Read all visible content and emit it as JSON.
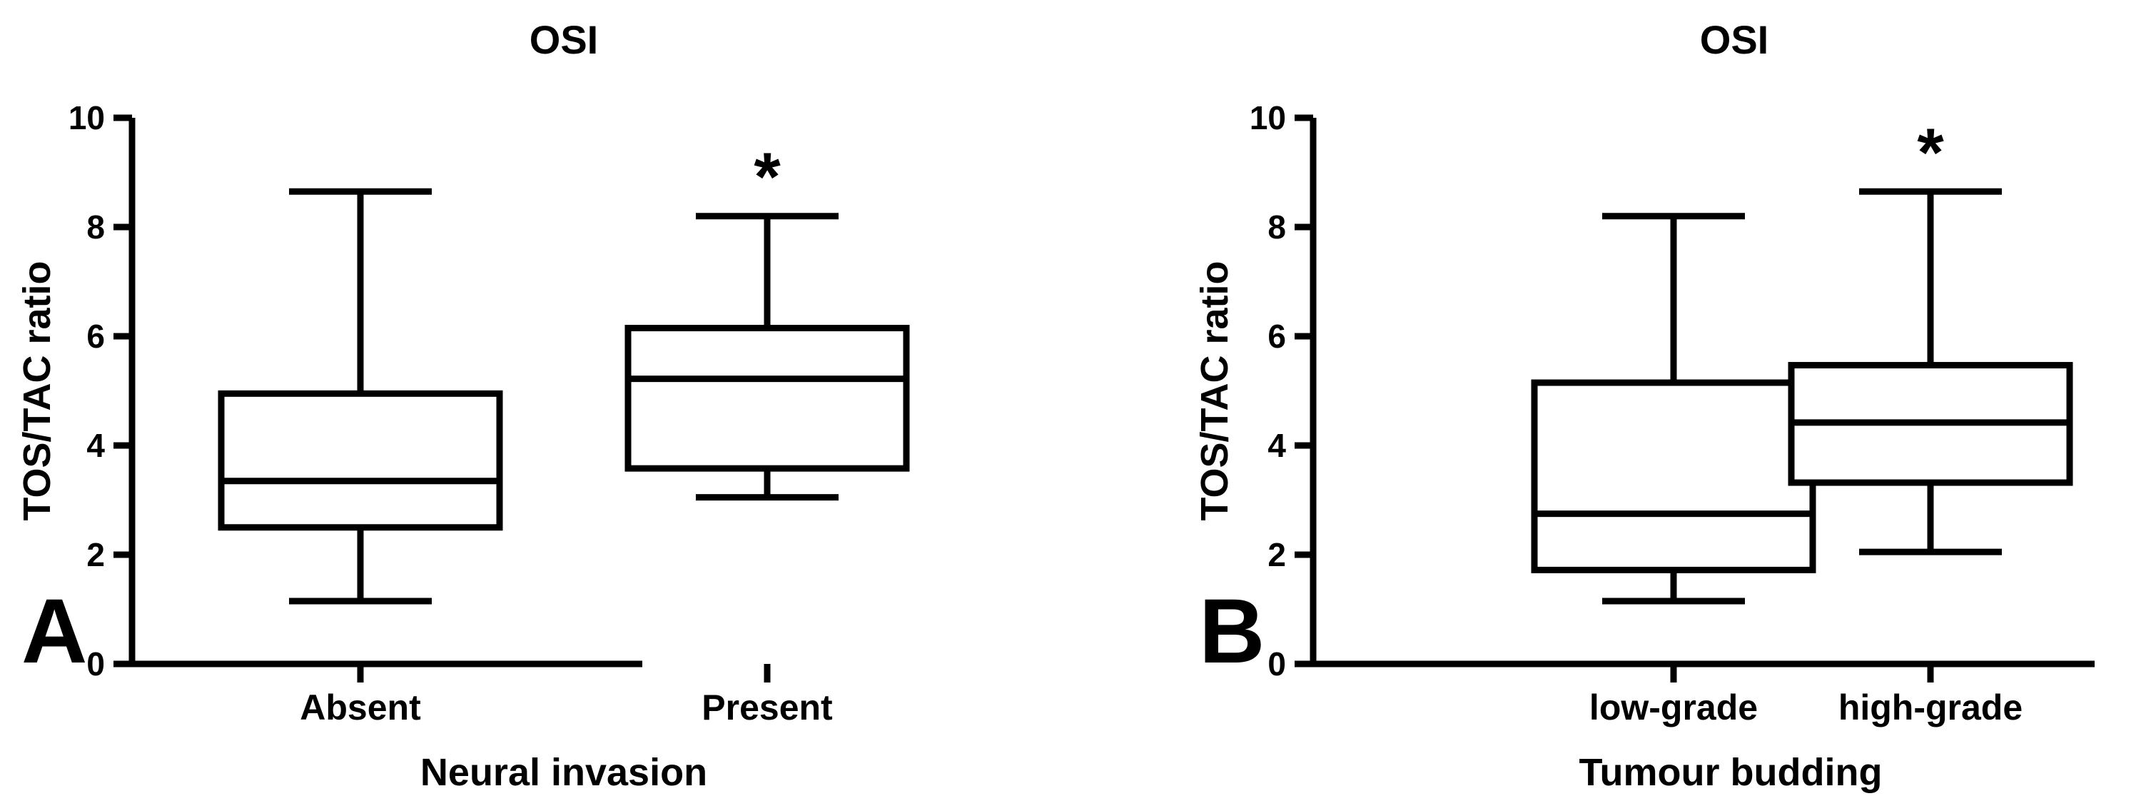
{
  "chart_data": [
    {
      "panel_label": "A",
      "type": "box",
      "title": "OSI",
      "xlabel": "Neural invasion",
      "ylabel": "TOS/TAC ratio",
      "ylim": [
        0,
        10
      ],
      "yticks": [
        "0",
        "2",
        "4",
        "6",
        "8",
        "10"
      ],
      "categories": [
        "Absent",
        "Present"
      ],
      "boxes": [
        {
          "category": "Absent",
          "min": 1.15,
          "q1": 2.5,
          "median": 3.35,
          "q3": 4.95,
          "max": 8.65,
          "annotation": ""
        },
        {
          "category": "Present",
          "min": 3.05,
          "q1": 3.58,
          "median": 5.22,
          "q3": 6.15,
          "max": 8.2,
          "annotation": "*"
        }
      ]
    },
    {
      "panel_label": "B",
      "type": "box",
      "title": "OSI",
      "xlabel": "Tumour budding",
      "ylabel": "TOS/TAC ratio",
      "ylim": [
        0,
        10
      ],
      "yticks": [
        "0",
        "2",
        "4",
        "6",
        "8",
        "10"
      ],
      "categories": [
        "low-grade",
        "high-grade"
      ],
      "boxes": [
        {
          "category": "low-grade",
          "min": 1.15,
          "q1": 1.72,
          "median": 2.75,
          "q3": 5.15,
          "max": 8.2,
          "annotation": ""
        },
        {
          "category": "high-grade",
          "min": 2.05,
          "q1": 3.32,
          "median": 4.42,
          "q3": 5.47,
          "max": 8.65,
          "annotation": "*"
        }
      ]
    }
  ]
}
